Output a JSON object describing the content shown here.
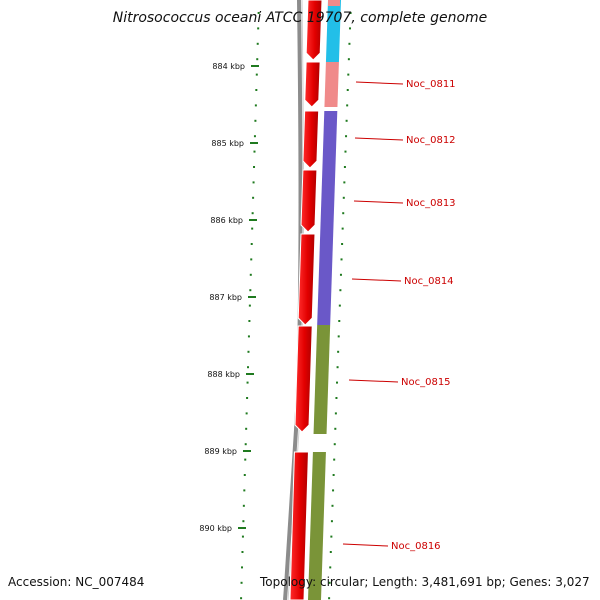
{
  "title": "Nitrosococcus oceani ATCC 19707, complete genome",
  "footer": {
    "accession": "Accession: NC_007484",
    "summary": "Topology: circular; Length: 3,481,691 bp; Genes: 3,027"
  },
  "ruler": {
    "labels": [
      "884 kbp",
      "885 kbp",
      "886 kbp",
      "887 kbp",
      "888 kbp",
      "889 kbp",
      "890 kbp"
    ]
  },
  "genes": [
    {
      "label": "Noc_0811",
      "color": "#f08a8a"
    },
    {
      "label": "Noc_0812",
      "color": "#6a58c8"
    },
    {
      "label": "Noc_0813",
      "color": "#6a58c8"
    },
    {
      "label": "Noc_0814",
      "color": "#6a58c8"
    },
    {
      "label": "Noc_0815",
      "color": "#7a9438"
    },
    {
      "label": "Noc_0816",
      "color": "#7a9438"
    }
  ],
  "colors": {
    "cds": "#e61010",
    "ruler": "#1f7a1f",
    "label": "#cc0000",
    "backbone": "#8c8c8c",
    "top_feature": "#22bfe8"
  }
}
